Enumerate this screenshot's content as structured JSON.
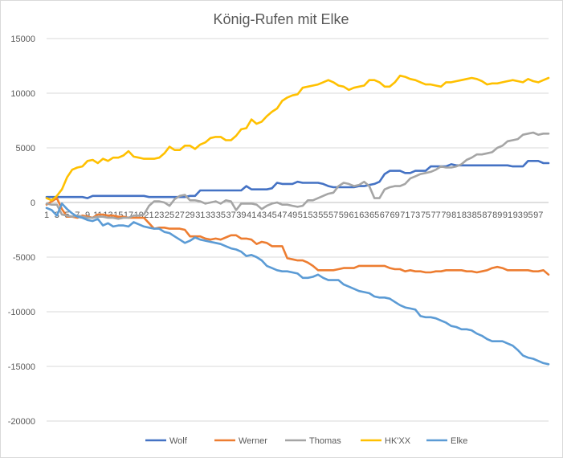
{
  "chart_data": {
    "type": "line",
    "title": "König-Rufen mit Elke",
    "xlabel": "",
    "ylabel": "",
    "ylim": [
      -20000,
      15000
    ],
    "yticks": [
      15000,
      10000,
      5000,
      0,
      -5000,
      -10000,
      -15000,
      -20000
    ],
    "x_tick_labels": [
      "1",
      "3",
      "5",
      "7",
      "9",
      "11",
      "13",
      "15",
      "17",
      "19",
      "21",
      "23",
      "25",
      "27",
      "29",
      "31",
      "33",
      "35",
      "37",
      "39",
      "41",
      "43",
      "45",
      "47",
      "49",
      "51",
      "53",
      "55",
      "57",
      "59",
      "61",
      "63",
      "65",
      "67",
      "69",
      "71",
      "73",
      "75",
      "77",
      "79",
      "81",
      "83",
      "85",
      "87",
      "89",
      "91",
      "93",
      "95",
      "97"
    ],
    "grid": true,
    "legend_position": "bottom",
    "series": [
      {
        "name": "Wolf",
        "color": "#4472C4",
        "values": [
          500,
          500,
          500,
          500,
          500,
          500,
          500,
          500,
          400,
          600,
          600,
          600,
          600,
          600,
          600,
          600,
          600,
          600,
          600,
          600,
          500,
          500,
          500,
          500,
          500,
          500,
          500,
          500,
          600,
          600,
          1100,
          1100,
          1100,
          1100,
          1100,
          1100,
          1100,
          1100,
          1100,
          1500,
          1200,
          1200,
          1200,
          1200,
          1300,
          1800,
          1700,
          1700,
          1700,
          1900,
          1800,
          1800,
          1800,
          1800,
          1700,
          1500,
          1400,
          1400,
          1400,
          1400,
          1400,
          1500,
          1500,
          1600,
          1700,
          1900,
          2600,
          2900,
          2900,
          2900,
          2700,
          2700,
          2900,
          2900,
          2900,
          3300,
          3300,
          3300,
          3300,
          3500,
          3400,
          3400,
          3400,
          3400,
          3400,
          3400,
          3400,
          3400,
          3400,
          3400,
          3400,
          3300,
          3300,
          3300,
          3800,
          3800,
          3800,
          3600,
          3600
        ]
      },
      {
        "name": "Werner",
        "color": "#ED7D31",
        "values": [
          -200,
          100,
          400,
          -600,
          -1300,
          -1300,
          -1400,
          -1200,
          -1300,
          -1400,
          -1100,
          -1100,
          -1200,
          -1200,
          -1300,
          -1300,
          -1400,
          -1400,
          -1400,
          -1400,
          -1900,
          -2400,
          -2300,
          -2300,
          -2400,
          -2400,
          -2400,
          -2500,
          -3100,
          -3100,
          -3100,
          -3300,
          -3400,
          -3300,
          -3400,
          -3200,
          -3000,
          -3000,
          -3300,
          -3300,
          -3400,
          -3800,
          -3600,
          -3700,
          -4000,
          -4000,
          -4000,
          -5100,
          -5200,
          -5300,
          -5300,
          -5500,
          -5800,
          -6200,
          -6200,
          -6200,
          -6200,
          -6100,
          -6000,
          -6000,
          -6000,
          -5800,
          -5800,
          -5800,
          -5800,
          -5800,
          -5800,
          -6000,
          -6100,
          -6100,
          -6300,
          -6200,
          -6300,
          -6300,
          -6400,
          -6400,
          -6300,
          -6300,
          -6200,
          -6200,
          -6200,
          -6200,
          -6300,
          -6300,
          -6400,
          -6300,
          -6200,
          -6000,
          -5900,
          -6000,
          -6200,
          -6200,
          -6200,
          -6200,
          -6200,
          -6300,
          -6300,
          -6200,
          -6600
        ]
      },
      {
        "name": "Thomas",
        "color": "#A5A5A5",
        "values": [
          -100,
          -200,
          -200,
          -1100,
          -1200,
          -1300,
          -1200,
          -1300,
          -1400,
          -1400,
          -1300,
          -1300,
          -1400,
          -1400,
          -1500,
          -1400,
          -1400,
          -1200,
          -1200,
          -1100,
          -300,
          100,
          100,
          0,
          -300,
          300,
          600,
          700,
          200,
          200,
          100,
          -100,
          0,
          100,
          -100,
          200,
          100,
          -700,
          -100,
          -100,
          -100,
          -200,
          -600,
          -300,
          -100,
          0,
          -200,
          -200,
          -300,
          -400,
          -300,
          200,
          200,
          400,
          600,
          800,
          900,
          1500,
          1800,
          1700,
          1500,
          1600,
          1900,
          1500,
          400,
          400,
          1200,
          1400,
          1500,
          1500,
          1700,
          2200,
          2400,
          2600,
          2700,
          2800,
          3000,
          3300,
          3200,
          3200,
          3300,
          3500,
          3900,
          4100,
          4400,
          4400,
          4500,
          4600,
          5000,
          5200,
          5600,
          5700,
          5800,
          6200,
          6300,
          6400,
          6200,
          6300,
          6300
        ]
      },
      {
        "name": "HK'XX",
        "color": "#FFC000",
        "values": [
          400,
          200,
          600,
          1200,
          2300,
          3000,
          3200,
          3300,
          3800,
          3900,
          3600,
          4000,
          3800,
          4100,
          4100,
          4300,
          4700,
          4200,
          4100,
          4000,
          4000,
          4000,
          4100,
          4500,
          5100,
          4800,
          4800,
          5200,
          5200,
          4900,
          5300,
          5500,
          5900,
          6000,
          6000,
          5700,
          5700,
          6100,
          6700,
          6800,
          7600,
          7200,
          7400,
          7900,
          8300,
          8600,
          9300,
          9600,
          9800,
          9900,
          10500,
          10600,
          10700,
          10800,
          11000,
          11200,
          11000,
          10700,
          10600,
          10300,
          10500,
          10600,
          10700,
          11200,
          11200,
          11000,
          10600,
          10600,
          11000,
          11600,
          11500,
          11300,
          11200,
          11000,
          10800,
          10800,
          10700,
          10600,
          11000,
          11000,
          11100,
          11200,
          11300,
          11400,
          11300,
          11100,
          10800,
          10900,
          10900,
          11000,
          11100,
          11200,
          11100,
          11000,
          11300,
          11100,
          11000,
          11200,
          11400
        ]
      },
      {
        "name": "Elke",
        "color": "#5B9BD5",
        "values": [
          -500,
          -700,
          -1200,
          -100,
          -600,
          -1000,
          -1300,
          -1400,
          -1600,
          -1700,
          -1500,
          -2100,
          -1900,
          -2200,
          -2100,
          -2100,
          -2200,
          -1800,
          -2000,
          -2200,
          -2300,
          -2400,
          -2400,
          -2700,
          -2800,
          -3100,
          -3400,
          -3700,
          -3500,
          -3200,
          -3400,
          -3500,
          -3600,
          -3700,
          -3800,
          -4000,
          -4200,
          -4300,
          -4500,
          -4900,
          -4800,
          -5000,
          -5300,
          -5800,
          -6000,
          -6200,
          -6300,
          -6300,
          -6400,
          -6500,
          -6900,
          -6900,
          -6800,
          -6600,
          -6900,
          -7100,
          -7100,
          -7100,
          -7500,
          -7700,
          -7900,
          -8100,
          -8200,
          -8300,
          -8600,
          -8700,
          -8700,
          -8800,
          -9100,
          -9400,
          -9600,
          -9700,
          -9800,
          -10400,
          -10500,
          -10500,
          -10600,
          -10800,
          -11000,
          -11300,
          -11400,
          -11600,
          -11600,
          -11700,
          -12000,
          -12200,
          -12500,
          -12700,
          -12700,
          -12700,
          -12900,
          -13100,
          -13500,
          -14000,
          -14200,
          -14300,
          -14500,
          -14700,
          -14800
        ]
      }
    ]
  }
}
